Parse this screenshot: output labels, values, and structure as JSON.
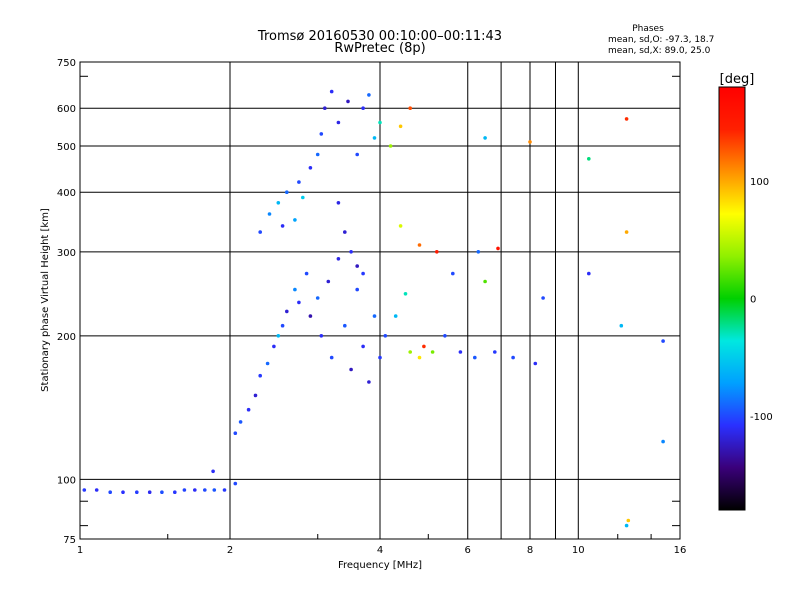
{
  "chart_data": {
    "type": "scatter",
    "title": "Tromsø 20160530 00:10:00–00:11:43",
    "subtitle": "RwPretec (8p)",
    "xlabel": "Frequency [MHz]",
    "ylabel": "Stationary phase Virtual Height [km]",
    "x_scale": "log",
    "y_scale": "log",
    "xlim": [
      1,
      16
    ],
    "ylim": [
      75,
      750
    ],
    "x_ticks": [
      1,
      2,
      4,
      6,
      8,
      10,
      16
    ],
    "x_tick_labels": [
      "1",
      "2",
      "4",
      "6",
      "8",
      "10",
      "16"
    ],
    "x_minor_ticks": [
      7,
      9
    ],
    "y_ticks": [
      75,
      100,
      200,
      300,
      400,
      500,
      600,
      750
    ],
    "y_tick_labels": [
      "75",
      "100",
      "200",
      "300",
      "400",
      "500",
      "600",
      "750"
    ],
    "y_minor_ticks": [
      80,
      90,
      700
    ],
    "grid": true,
    "stats": {
      "heading": "Phases",
      "line1": "mean, sd,O:  -97.3, 18.7",
      "line2": "mean, sd,X:   89.0, 25.0"
    },
    "colorbar": {
      "label": "[deg]",
      "range": [
        -180,
        180
      ],
      "ticks": [
        100,
        0,
        -100
      ],
      "tick_labels": [
        "100",
        "0",
        "-100"
      ],
      "colors": [
        "#000000",
        "#3a007a",
        "#2a30ff",
        "#00a0ff",
        "#00e8e0",
        "#00d000",
        "#90f000",
        "#ffff00",
        "#ff9000",
        "#ff2000",
        "#ff0000"
      ]
    },
    "marker_color_by": "phase",
    "series": [
      {
        "points": [
          [
            1.02,
            95,
            -105
          ],
          [
            1.08,
            95,
            -110
          ],
          [
            1.15,
            94,
            -100
          ],
          [
            1.22,
            94,
            -108
          ],
          [
            1.3,
            94,
            -104
          ],
          [
            1.38,
            94,
            -112
          ],
          [
            1.46,
            94,
            -98
          ],
          [
            1.55,
            94,
            -106
          ],
          [
            1.62,
            95,
            -102
          ],
          [
            1.7,
            95,
            -110
          ],
          [
            1.78,
            95,
            -100
          ],
          [
            1.86,
            95,
            -96
          ],
          [
            1.95,
            95,
            -105
          ],
          [
            2.05,
            125,
            -100
          ],
          [
            2.1,
            132,
            -95
          ],
          [
            2.18,
            140,
            -110
          ],
          [
            2.25,
            150,
            -120
          ],
          [
            2.3,
            165,
            -105
          ],
          [
            2.38,
            175,
            -90
          ],
          [
            2.45,
            190,
            -110
          ],
          [
            2.5,
            200,
            -60
          ],
          [
            2.55,
            210,
            -100
          ],
          [
            2.6,
            225,
            -120
          ],
          [
            2.7,
            250,
            -80
          ],
          [
            2.75,
            235,
            -110
          ],
          [
            2.85,
            270,
            -100
          ],
          [
            2.9,
            220,
            -130
          ],
          [
            3.0,
            240,
            -90
          ],
          [
            3.05,
            200,
            -110
          ],
          [
            3.15,
            260,
            -120
          ],
          [
            3.2,
            180,
            -100
          ],
          [
            3.3,
            290,
            -115
          ],
          [
            3.4,
            210,
            -95
          ],
          [
            3.5,
            170,
            -125
          ],
          [
            3.6,
            250,
            -100
          ],
          [
            3.7,
            190,
            -110
          ],
          [
            3.8,
            160,
            -120
          ],
          [
            3.9,
            220,
            -90
          ],
          [
            4.0,
            180,
            -105
          ],
          [
            4.1,
            200,
            -100
          ],
          [
            4.3,
            220,
            -60
          ],
          [
            4.5,
            245,
            -30
          ],
          [
            4.6,
            185,
            40
          ],
          [
            4.8,
            180,
            80
          ],
          [
            4.9,
            190,
            140
          ],
          [
            5.1,
            185,
            30
          ],
          [
            5.4,
            200,
            -100
          ],
          [
            5.8,
            185,
            -110
          ],
          [
            6.2,
            180,
            -95
          ],
          [
            6.8,
            185,
            -105
          ],
          [
            7.4,
            180,
            -100
          ],
          [
            8.2,
            175,
            -110
          ],
          [
            2.3,
            330,
            -100
          ],
          [
            2.4,
            360,
            -80
          ],
          [
            2.5,
            380,
            -60
          ],
          [
            2.55,
            340,
            -110
          ],
          [
            2.6,
            400,
            -90
          ],
          [
            2.7,
            350,
            -70
          ],
          [
            2.75,
            420,
            -100
          ],
          [
            2.8,
            390,
            -50
          ],
          [
            2.9,
            450,
            -110
          ],
          [
            3.0,
            480,
            -90
          ],
          [
            3.05,
            530,
            -100
          ],
          [
            3.1,
            600,
            -120
          ],
          [
            3.2,
            650,
            -110
          ],
          [
            3.3,
            560,
            -115
          ],
          [
            3.45,
            620,
            -125
          ],
          [
            3.6,
            480,
            -100
          ],
          [
            3.7,
            600,
            -110
          ],
          [
            3.8,
            640,
            -90
          ],
          [
            3.9,
            520,
            -60
          ],
          [
            4.0,
            560,
            -30
          ],
          [
            4.2,
            500,
            40
          ],
          [
            4.4,
            550,
            90
          ],
          [
            4.6,
            600,
            130
          ],
          [
            3.3,
            380,
            -115
          ],
          [
            3.4,
            330,
            -120
          ],
          [
            3.5,
            300,
            -110
          ],
          [
            3.6,
            280,
            -125
          ],
          [
            3.7,
            270,
            -105
          ],
          [
            4.4,
            340,
            60
          ],
          [
            4.8,
            310,
            120
          ],
          [
            5.2,
            300,
            150
          ],
          [
            5.6,
            270,
            -100
          ],
          [
            6.3,
            300,
            -90
          ],
          [
            6.5,
            260,
            20
          ],
          [
            6.9,
            305,
            160
          ],
          [
            8.5,
            240,
            -100
          ],
          [
            10.5,
            270,
            -110
          ],
          [
            6.5,
            520,
            -60
          ],
          [
            8.0,
            510,
            110
          ],
          [
            10.5,
            470,
            -20
          ],
          [
            12.5,
            570,
            140
          ],
          [
            12.5,
            330,
            100
          ],
          [
            12.2,
            210,
            -60
          ],
          [
            14.8,
            195,
            -100
          ],
          [
            14.8,
            120,
            -80
          ],
          [
            12.6,
            82,
            90
          ],
          [
            12.5,
            80,
            -60
          ],
          [
            2.05,
            98,
            -100
          ],
          [
            1.85,
            104,
            -110
          ]
        ]
      }
    ]
  }
}
